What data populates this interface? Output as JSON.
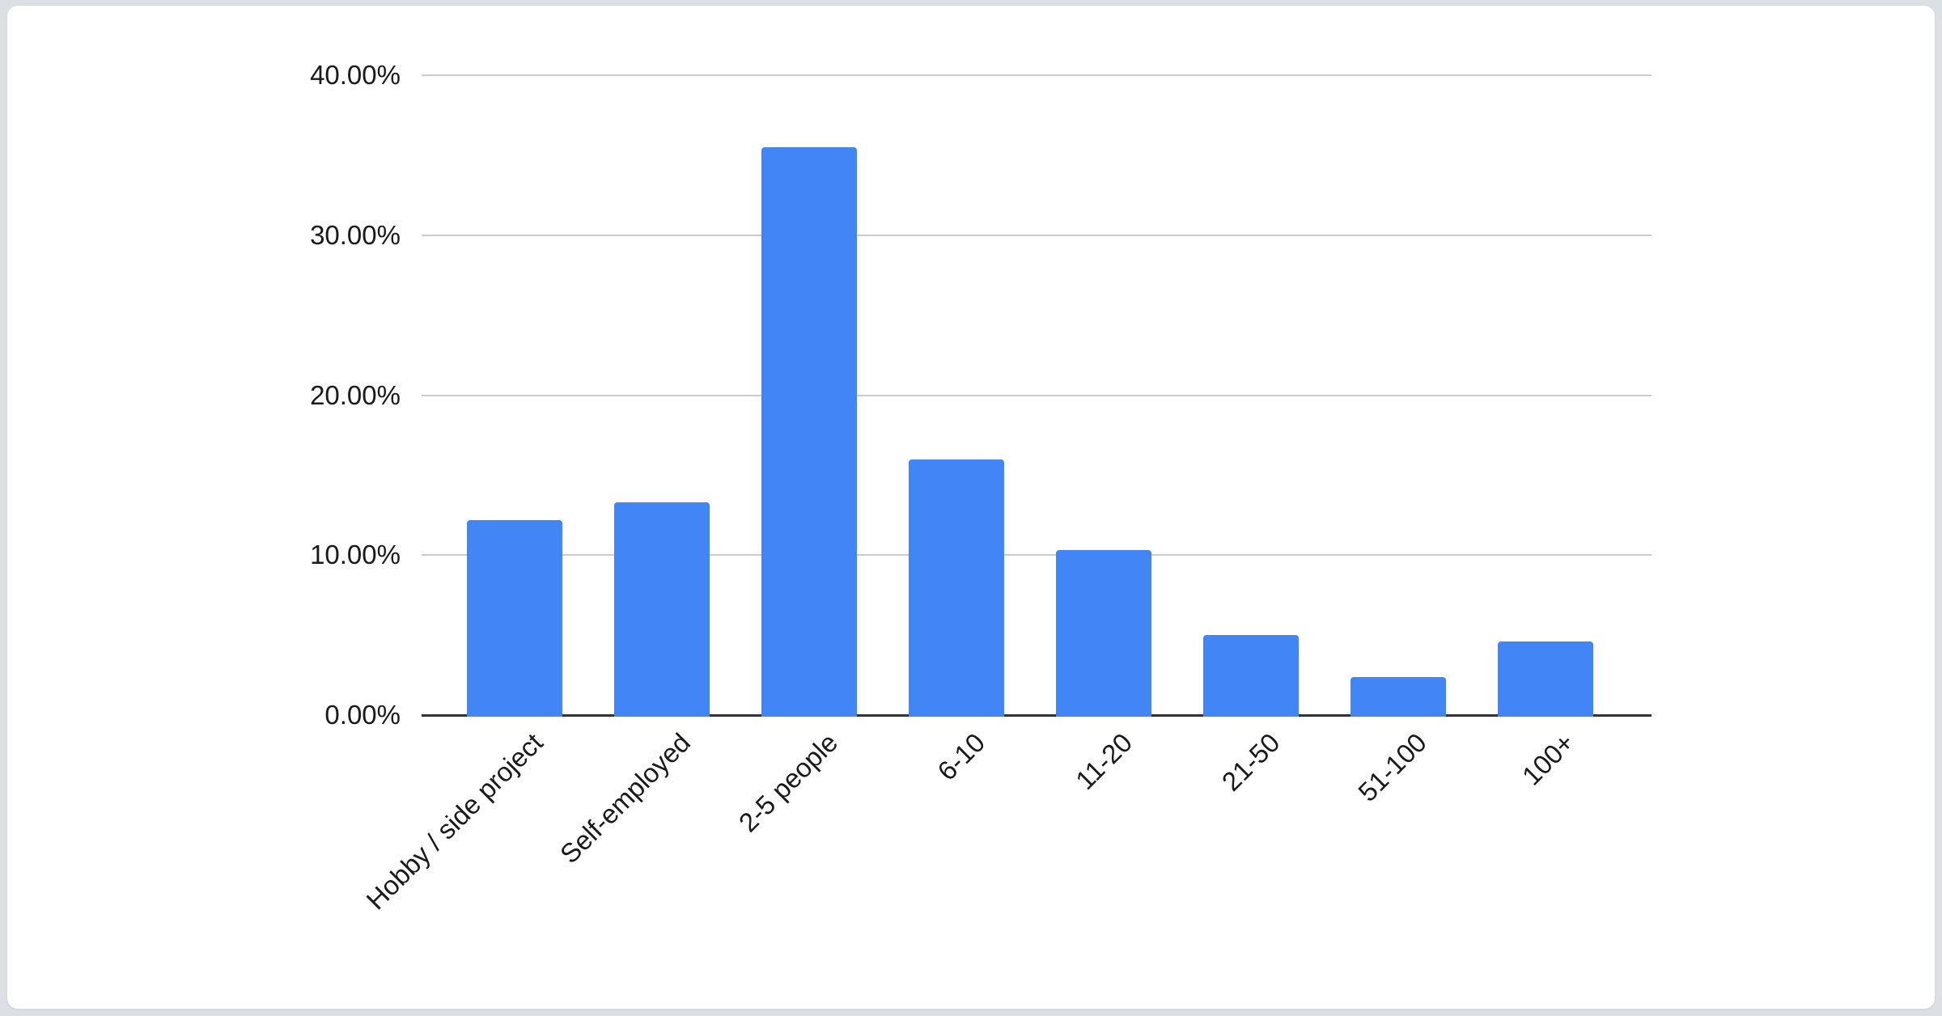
{
  "chart_data": {
    "type": "bar",
    "title": "",
    "xlabel": "",
    "ylabel": "",
    "categories": [
      "Hobby / side project",
      "Self-employed",
      "2-5 people",
      "6-10",
      "11-20",
      "21-50",
      "51-100",
      "100+"
    ],
    "values": [
      12.2,
      13.3,
      35.5,
      16.0,
      10.3,
      5.0,
      2.4,
      4.6
    ],
    "value_unit": "percent",
    "ylim": [
      0,
      40
    ],
    "y_ticks": [
      {
        "value": 0,
        "label": "0.00%"
      },
      {
        "value": 10,
        "label": "10.00%"
      },
      {
        "value": 20,
        "label": "20.00%"
      },
      {
        "value": 30,
        "label": "30.00%"
      },
      {
        "value": 40,
        "label": "40.00%"
      }
    ],
    "grid": true,
    "legend": "none",
    "x_label_rotation_deg": -45,
    "colors": {
      "bar": "#4285f4",
      "gridline": "#cccccc",
      "axis_line": "#333333",
      "label_text": "#1a1a1a"
    }
  }
}
